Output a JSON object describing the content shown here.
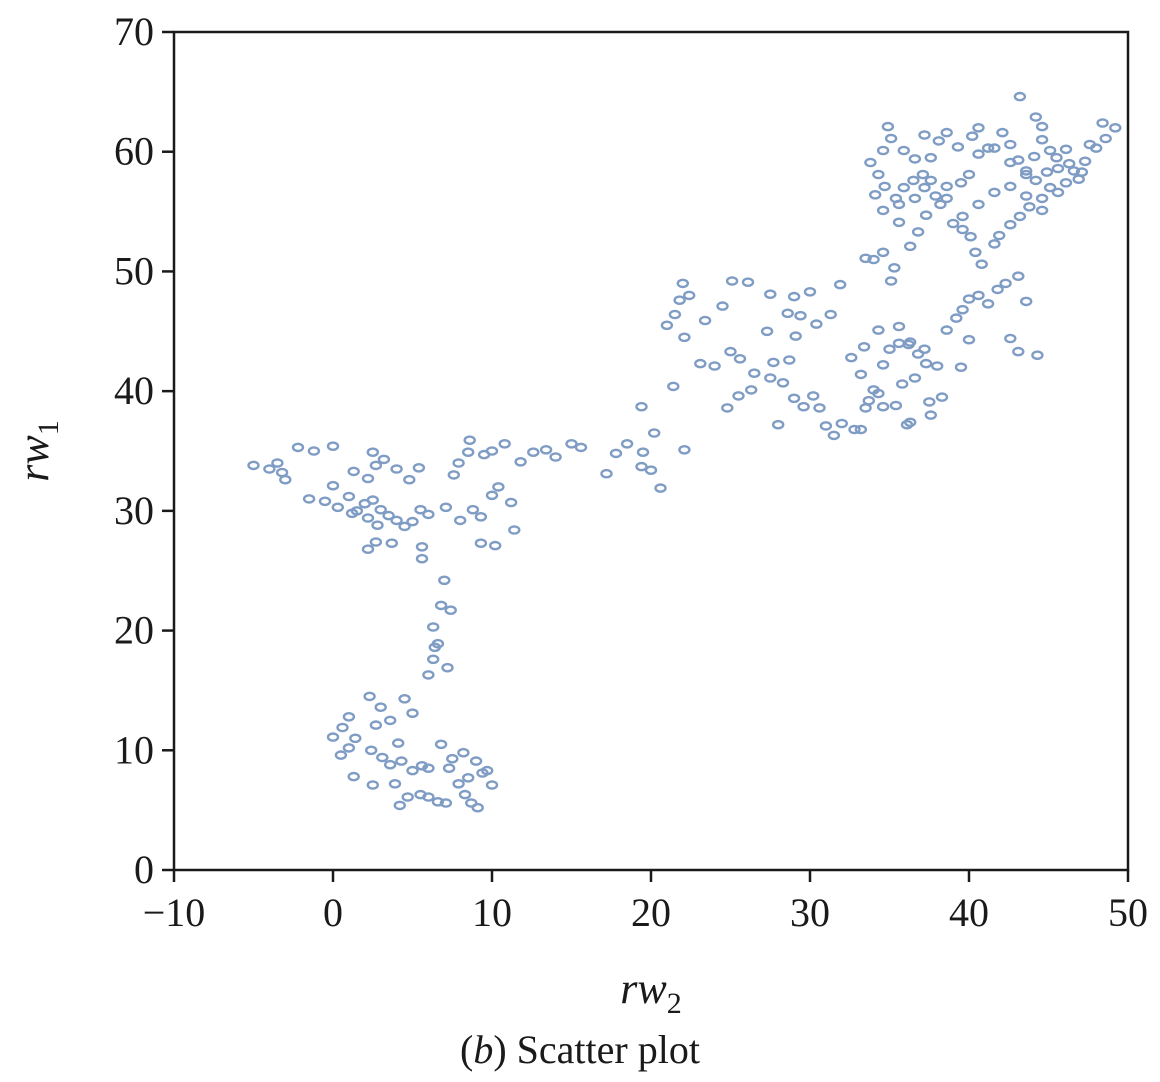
{
  "chart_data": {
    "type": "scatter",
    "xlabel": {
      "base": "rw",
      "sub": "2"
    },
    "ylabel": {
      "base": "rw",
      "sub": "1"
    },
    "caption": {
      "prefix": "(",
      "letter": "b",
      "suffix": ") Scatter plot"
    },
    "xlim": [
      -10,
      50
    ],
    "ylim": [
      0,
      70
    ],
    "xticks": [
      -10,
      0,
      10,
      20,
      30,
      40,
      50
    ],
    "yticks": [
      0,
      10,
      20,
      30,
      40,
      50,
      60,
      70
    ],
    "xtick_labels": [
      "−10",
      "0",
      "10",
      "20",
      "30",
      "40",
      "50"
    ],
    "ytick_labels": [
      "0",
      "10",
      "20",
      "30",
      "40",
      "50",
      "60",
      "70"
    ],
    "marker_color": "#7f9cc4",
    "marker": "hollow-ellipse",
    "grid": false,
    "points": [
      [
        -5.0,
        33.8
      ],
      [
        -4.0,
        33.5
      ],
      [
        -3.5,
        34.0
      ],
      [
        -3.2,
        33.2
      ],
      [
        -3.0,
        32.6
      ],
      [
        -2.2,
        35.3
      ],
      [
        -1.2,
        35.0
      ],
      [
        0.0,
        35.4
      ],
      [
        0.0,
        32.1
      ],
      [
        -1.5,
        31.0
      ],
      [
        -0.5,
        30.8
      ],
      [
        0.3,
        30.3
      ],
      [
        1.0,
        31.2
      ],
      [
        1.5,
        30.0
      ],
      [
        2.0,
        30.6
      ],
      [
        2.5,
        30.9
      ],
      [
        3.0,
        30.1
      ],
      [
        1.2,
        29.8
      ],
      [
        2.2,
        29.4
      ],
      [
        2.8,
        28.8
      ],
      [
        3.5,
        29.6
      ],
      [
        4.0,
        29.2
      ],
      [
        4.5,
        28.7
      ],
      [
        5.0,
        29.1
      ],
      [
        5.5,
        30.1
      ],
      [
        6.0,
        29.7
      ],
      [
        2.2,
        32.7
      ],
      [
        1.3,
        33.3
      ],
      [
        2.7,
        33.8
      ],
      [
        3.2,
        34.3
      ],
      [
        4.0,
        33.5
      ],
      [
        4.8,
        32.6
      ],
      [
        5.4,
        33.6
      ],
      [
        2.5,
        34.9
      ],
      [
        2.2,
        26.8
      ],
      [
        2.7,
        27.4
      ],
      [
        3.7,
        27.3
      ],
      [
        5.6,
        27.0
      ],
      [
        5.6,
        26.0
      ],
      [
        7.1,
        30.3
      ],
      [
        8.0,
        29.2
      ],
      [
        8.8,
        30.1
      ],
      [
        9.3,
        29.5
      ],
      [
        10.0,
        31.3
      ],
      [
        10.4,
        32.0
      ],
      [
        11.2,
        30.7
      ],
      [
        11.4,
        28.4
      ],
      [
        10.2,
        27.1
      ],
      [
        9.3,
        27.3
      ],
      [
        7.6,
        33.0
      ],
      [
        7.9,
        34.0
      ],
      [
        8.5,
        34.9
      ],
      [
        8.6,
        35.9
      ],
      [
        9.5,
        34.7
      ],
      [
        10.0,
        35.0
      ],
      [
        10.8,
        35.6
      ],
      [
        11.8,
        34.1
      ],
      [
        12.6,
        34.9
      ],
      [
        13.4,
        35.1
      ],
      [
        14.0,
        34.5
      ],
      [
        15.0,
        35.6
      ],
      [
        15.6,
        35.3
      ],
      [
        17.2,
        33.1
      ],
      [
        17.8,
        34.8
      ],
      [
        18.5,
        35.6
      ],
      [
        19.5,
        34.9
      ],
      [
        19.4,
        33.7
      ],
      [
        20.0,
        33.4
      ],
      [
        20.2,
        36.5
      ],
      [
        19.4,
        38.7
      ],
      [
        20.6,
        31.9
      ],
      [
        22.1,
        35.1
      ],
      [
        7.0,
        24.2
      ],
      [
        6.8,
        22.1
      ],
      [
        7.4,
        21.7
      ],
      [
        6.3,
        20.3
      ],
      [
        6.6,
        18.9
      ],
      [
        6.3,
        17.6
      ],
      [
        7.2,
        16.9
      ],
      [
        6.0,
        16.3
      ],
      [
        6.4,
        18.6
      ],
      [
        2.3,
        14.5
      ],
      [
        3.0,
        13.6
      ],
      [
        3.6,
        12.5
      ],
      [
        4.5,
        14.3
      ],
      [
        5.0,
        13.1
      ],
      [
        2.7,
        12.1
      ],
      [
        1.0,
        12.8
      ],
      [
        0.6,
        11.9
      ],
      [
        0.0,
        11.1
      ],
      [
        1.0,
        10.2
      ],
      [
        2.4,
        10.0
      ],
      [
        3.1,
        9.4
      ],
      [
        3.6,
        8.8
      ],
      [
        4.3,
        9.1
      ],
      [
        5.0,
        8.3
      ],
      [
        5.6,
        8.7
      ],
      [
        6.0,
        8.5
      ],
      [
        6.8,
        10.5
      ],
      [
        7.5,
        9.3
      ],
      [
        8.2,
        9.8
      ],
      [
        9.0,
        9.1
      ],
      [
        9.4,
        8.1
      ],
      [
        8.5,
        7.7
      ],
      [
        7.9,
        7.2
      ],
      [
        8.3,
        6.3
      ],
      [
        8.7,
        5.6
      ],
      [
        9.1,
        5.2
      ],
      [
        6.0,
        6.1
      ],
      [
        5.5,
        6.3
      ],
      [
        4.7,
        6.1
      ],
      [
        4.2,
        5.4
      ],
      [
        6.6,
        5.7
      ],
      [
        7.1,
        5.6
      ],
      [
        10.0,
        7.1
      ],
      [
        9.7,
        8.3
      ],
      [
        3.9,
        7.2
      ],
      [
        1.3,
        7.8
      ],
      [
        2.5,
        7.1
      ],
      [
        0.5,
        9.6
      ],
      [
        1.4,
        11.0
      ],
      [
        4.1,
        10.6
      ],
      [
        7.3,
        8.5
      ],
      [
        21.0,
        45.5
      ],
      [
        21.5,
        46.4
      ],
      [
        21.8,
        47.6
      ],
      [
        22.4,
        48.0
      ],
      [
        22.0,
        49.0
      ],
      [
        23.4,
        45.9
      ],
      [
        24.5,
        47.1
      ],
      [
        25.1,
        49.2
      ],
      [
        26.1,
        49.1
      ],
      [
        27.5,
        48.1
      ],
      [
        28.6,
        46.5
      ],
      [
        29.0,
        47.9
      ],
      [
        30.0,
        48.3
      ],
      [
        29.4,
        46.3
      ],
      [
        30.4,
        45.6
      ],
      [
        31.3,
        46.4
      ],
      [
        31.9,
        48.9
      ],
      [
        24.0,
        42.1
      ],
      [
        25.0,
        43.3
      ],
      [
        25.6,
        42.7
      ],
      [
        26.5,
        41.5
      ],
      [
        27.5,
        41.1
      ],
      [
        28.3,
        40.7
      ],
      [
        27.7,
        42.4
      ],
      [
        28.7,
        42.6
      ],
      [
        24.8,
        38.6
      ],
      [
        25.5,
        39.6
      ],
      [
        26.3,
        40.1
      ],
      [
        29.0,
        39.4
      ],
      [
        29.6,
        38.7
      ],
      [
        30.6,
        38.6
      ],
      [
        31.0,
        37.1
      ],
      [
        31.5,
        36.3
      ],
      [
        32.0,
        37.3
      ],
      [
        32.8,
        36.8
      ],
      [
        33.5,
        38.6
      ],
      [
        33.7,
        39.2
      ],
      [
        34.0,
        40.1
      ],
      [
        34.6,
        42.2
      ],
      [
        35.0,
        43.5
      ],
      [
        35.6,
        44.0
      ],
      [
        36.2,
        43.9
      ],
      [
        36.8,
        43.1
      ],
      [
        37.3,
        42.3
      ],
      [
        38.0,
        42.1
      ],
      [
        38.6,
        45.1
      ],
      [
        39.2,
        46.1
      ],
      [
        39.6,
        46.8
      ],
      [
        40.0,
        47.7
      ],
      [
        40.6,
        48.0
      ],
      [
        41.2,
        47.3
      ],
      [
        41.8,
        48.5
      ],
      [
        42.3,
        49.0
      ],
      [
        43.1,
        49.6
      ],
      [
        43.6,
        47.5
      ],
      [
        43.1,
        43.3
      ],
      [
        44.3,
        43.0
      ],
      [
        42.6,
        44.4
      ],
      [
        40.0,
        44.3
      ],
      [
        39.5,
        42.0
      ],
      [
        38.3,
        39.5
      ],
      [
        37.6,
        38.0
      ],
      [
        36.3,
        37.4
      ],
      [
        35.4,
        38.8
      ],
      [
        34.3,
        39.8
      ],
      [
        33.2,
        41.4
      ],
      [
        32.6,
        42.8
      ],
      [
        33.4,
        43.7
      ],
      [
        34.3,
        45.1
      ],
      [
        35.6,
        45.4
      ],
      [
        36.3,
        44.1
      ],
      [
        37.2,
        43.5
      ],
      [
        36.6,
        41.1
      ],
      [
        35.8,
        40.6
      ],
      [
        37.5,
        39.1
      ],
      [
        36.1,
        37.2
      ],
      [
        34.6,
        38.7
      ],
      [
        33.2,
        36.8
      ],
      [
        30.2,
        39.6
      ],
      [
        28.0,
        37.2
      ],
      [
        27.3,
        45.0
      ],
      [
        29.1,
        44.6
      ],
      [
        22.1,
        44.5
      ],
      [
        23.1,
        42.3
      ],
      [
        21.4,
        40.4
      ],
      [
        33.5,
        51.1
      ],
      [
        34.0,
        51.0
      ],
      [
        34.6,
        51.6
      ],
      [
        35.3,
        50.3
      ],
      [
        35.1,
        49.2
      ],
      [
        36.3,
        52.1
      ],
      [
        36.8,
        53.3
      ],
      [
        37.3,
        54.7
      ],
      [
        38.2,
        55.6
      ],
      [
        39.0,
        54.0
      ],
      [
        39.6,
        53.5
      ],
      [
        40.1,
        52.9
      ],
      [
        40.4,
        51.6
      ],
      [
        40.8,
        50.6
      ],
      [
        41.6,
        52.3
      ],
      [
        41.9,
        53.0
      ],
      [
        42.6,
        53.9
      ],
      [
        43.2,
        54.6
      ],
      [
        43.8,
        55.4
      ],
      [
        44.6,
        56.1
      ],
      [
        45.1,
        57.0
      ],
      [
        46.1,
        57.4
      ],
      [
        46.6,
        58.4
      ],
      [
        47.3,
        59.2
      ],
      [
        48.0,
        60.3
      ],
      [
        48.6,
        61.1
      ],
      [
        49.2,
        62.0
      ],
      [
        48.4,
        62.4
      ],
      [
        47.6,
        60.6
      ],
      [
        46.1,
        60.2
      ],
      [
        45.5,
        59.5
      ],
      [
        44.9,
        58.3
      ],
      [
        44.2,
        57.6
      ],
      [
        43.6,
        58.1
      ],
      [
        43.1,
        59.3
      ],
      [
        42.6,
        60.6
      ],
      [
        42.1,
        61.6
      ],
      [
        41.2,
        60.3
      ],
      [
        40.6,
        59.8
      ],
      [
        40.0,
        58.1
      ],
      [
        39.5,
        57.4
      ],
      [
        38.6,
        57.1
      ],
      [
        37.9,
        56.3
      ],
      [
        37.2,
        57.0
      ],
      [
        36.5,
        57.6
      ],
      [
        35.9,
        57.0
      ],
      [
        35.4,
        56.1
      ],
      [
        34.7,
        57.1
      ],
      [
        34.3,
        58.1
      ],
      [
        33.8,
        59.1
      ],
      [
        34.6,
        60.1
      ],
      [
        35.1,
        61.1
      ],
      [
        35.9,
        60.1
      ],
      [
        36.6,
        59.4
      ],
      [
        37.1,
        58.1
      ],
      [
        37.6,
        59.5
      ],
      [
        38.1,
        60.9
      ],
      [
        38.6,
        61.6
      ],
      [
        39.3,
        60.4
      ],
      [
        40.2,
        61.3
      ],
      [
        40.6,
        62.0
      ],
      [
        41.6,
        60.3
      ],
      [
        42.6,
        59.1
      ],
      [
        43.6,
        58.4
      ],
      [
        44.1,
        59.6
      ],
      [
        44.6,
        61.0
      ],
      [
        45.1,
        60.1
      ],
      [
        45.6,
        58.6
      ],
      [
        46.3,
        59.0
      ],
      [
        47.1,
        58.3
      ],
      [
        46.9,
        57.7
      ],
      [
        45.6,
        56.6
      ],
      [
        44.6,
        55.1
      ],
      [
        43.6,
        56.3
      ],
      [
        42.6,
        57.1
      ],
      [
        41.6,
        56.6
      ],
      [
        40.6,
        55.6
      ],
      [
        39.6,
        54.6
      ],
      [
        38.6,
        56.1
      ],
      [
        37.6,
        57.6
      ],
      [
        36.6,
        56.1
      ],
      [
        35.6,
        55.6
      ],
      [
        34.6,
        55.1
      ],
      [
        34.1,
        56.4
      ],
      [
        35.6,
        54.1
      ],
      [
        44.2,
        62.9
      ],
      [
        43.2,
        64.6
      ],
      [
        44.6,
        62.1
      ],
      [
        37.2,
        61.4
      ],
      [
        34.9,
        62.1
      ]
    ]
  }
}
